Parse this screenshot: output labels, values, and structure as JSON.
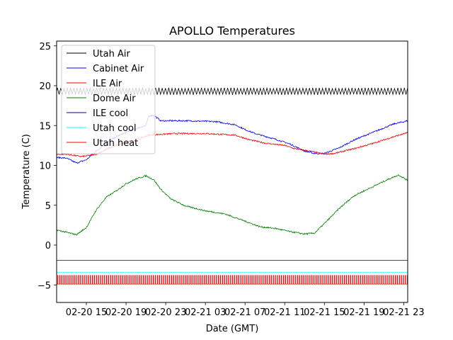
{
  "chart_data": {
    "type": "line",
    "title": "APOLLO Temperatures",
    "xlabel": "Date (GMT)",
    "ylabel": "Temperature (C)",
    "ylim": [
      -7.2,
      25.6
    ],
    "xlim_hours": [
      12.0,
      47.4
    ],
    "y_ticks": [
      -5,
      0,
      5,
      10,
      15,
      20,
      25
    ],
    "x_ticks": [
      {
        "hour": 15,
        "label": "02-20 15"
      },
      {
        "hour": 19,
        "label": "02-20 19"
      },
      {
        "hour": 23,
        "label": "02-20 23"
      },
      {
        "hour": 27,
        "label": "02-21 03"
      },
      {
        "hour": 31,
        "label": "02-21 07"
      },
      {
        "hour": 35,
        "label": "02-21 11"
      },
      {
        "hour": 39,
        "label": "02-21 15"
      },
      {
        "hour": 43,
        "label": "02-21 19"
      },
      {
        "hour": 47,
        "label": "02-21 23"
      }
    ],
    "legend_position": "top-left",
    "series": [
      {
        "name": "Utah Air",
        "color": "#000000",
        "style": "oscillating",
        "base": 19.3,
        "amplitude": 0.45,
        "period_hours": 0.33
      },
      {
        "name": "Cabinet Air",
        "color": "#0000ff",
        "points": [
          [
            12.0,
            11.0
          ],
          [
            13.0,
            10.9
          ],
          [
            14.0,
            10.3
          ],
          [
            15.0,
            10.7
          ],
          [
            16.0,
            11.8
          ],
          [
            17.0,
            12.8
          ],
          [
            18.0,
            13.6
          ],
          [
            19.5,
            14.4
          ],
          [
            21.0,
            15.0
          ],
          [
            21.3,
            16.2
          ],
          [
            21.8,
            16.3
          ],
          [
            22.5,
            15.6
          ],
          [
            25.0,
            15.6
          ],
          [
            28.0,
            15.5
          ],
          [
            30.0,
            15.1
          ],
          [
            31.0,
            14.5
          ],
          [
            32.0,
            14.0
          ],
          [
            34.0,
            13.3
          ],
          [
            35.5,
            12.7
          ],
          [
            37.0,
            11.8
          ],
          [
            38.0,
            11.5
          ],
          [
            39.0,
            11.5
          ],
          [
            40.5,
            12.2
          ],
          [
            42.0,
            13.2
          ],
          [
            44.0,
            14.2
          ],
          [
            46.0,
            15.2
          ],
          [
            47.4,
            15.6
          ]
        ]
      },
      {
        "name": "ILE Air",
        "color": "#ff0000",
        "points": [
          [
            12.0,
            11.4
          ],
          [
            13.0,
            11.4
          ],
          [
            14.5,
            11.1
          ],
          [
            16.0,
            11.4
          ],
          [
            17.5,
            12.3
          ],
          [
            19.0,
            12.9
          ],
          [
            20.5,
            13.4
          ],
          [
            21.3,
            13.8
          ],
          [
            22.5,
            13.9
          ],
          [
            24.0,
            14.0
          ],
          [
            27.0,
            14.0
          ],
          [
            30.0,
            13.8
          ],
          [
            31.5,
            13.2
          ],
          [
            33.0,
            12.8
          ],
          [
            35.0,
            12.5
          ],
          [
            36.0,
            12.1
          ],
          [
            37.5,
            11.8
          ],
          [
            39.0,
            11.4
          ],
          [
            40.0,
            11.5
          ],
          [
            42.0,
            12.1
          ],
          [
            44.0,
            12.8
          ],
          [
            46.0,
            13.6
          ],
          [
            47.4,
            14.1
          ]
        ]
      },
      {
        "name": "Dome Air",
        "color": "#008000",
        "points": [
          [
            12.0,
            1.9
          ],
          [
            13.0,
            1.6
          ],
          [
            14.0,
            1.3
          ],
          [
            15.0,
            2.2
          ],
          [
            16.0,
            4.4
          ],
          [
            17.0,
            6.0
          ],
          [
            18.0,
            6.8
          ],
          [
            19.0,
            7.7
          ],
          [
            20.0,
            8.3
          ],
          [
            21.0,
            8.7
          ],
          [
            21.8,
            8.2
          ],
          [
            22.5,
            7.0
          ],
          [
            23.5,
            5.8
          ],
          [
            25.0,
            4.9
          ],
          [
            27.0,
            4.3
          ],
          [
            29.0,
            3.9
          ],
          [
            31.0,
            3.0
          ],
          [
            32.5,
            2.3
          ],
          [
            34.0,
            2.1
          ],
          [
            35.5,
            1.7
          ],
          [
            37.0,
            1.4
          ],
          [
            38.0,
            1.5
          ],
          [
            39.0,
            2.7
          ],
          [
            40.5,
            4.6
          ],
          [
            42.0,
            6.2
          ],
          [
            44.0,
            7.4
          ],
          [
            45.5,
            8.3
          ],
          [
            46.5,
            8.8
          ],
          [
            47.4,
            8.1
          ]
        ]
      },
      {
        "name": "ILE cool",
        "color": "#00008b",
        "style": "flat",
        "value": -1.9
      },
      {
        "name": "Utah cool",
        "color": "#00ffff",
        "style": "flat",
        "value": -3.4
      },
      {
        "name": "Utah heat",
        "color": "#ff0000",
        "style": "pulses",
        "low": -4.9,
        "high": -3.8,
        "period_hours": 0.205
      }
    ]
  }
}
